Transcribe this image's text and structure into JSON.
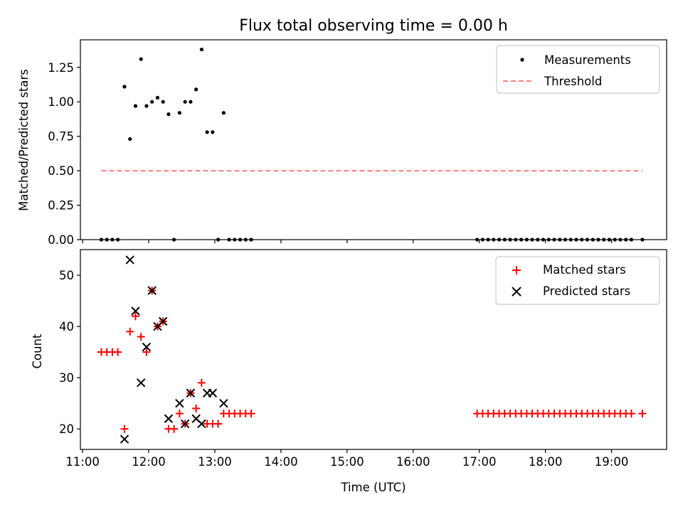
{
  "chart_data": [
    {
      "type": "scatter",
      "title": "Flux total observing time = 0.00 h",
      "xlabel": "",
      "ylabel": "Matched/Predicted stars",
      "ylim": [
        0,
        1.45
      ],
      "yticks": [
        "0.00",
        "0.25",
        "0.50",
        "0.75",
        "1.00",
        "1.25"
      ],
      "legend": {
        "placement": "top-right",
        "entries": [
          "Measurements",
          "Threshold"
        ]
      },
      "series": [
        {
          "name": "Measurements",
          "marker": "dot",
          "color": "#000000",
          "points": [
            [
              "11:17",
              0.0
            ],
            [
              "11:22",
              0.0
            ],
            [
              "11:27",
              0.0
            ],
            [
              "11:32",
              0.0
            ],
            [
              "11:38",
              1.11
            ],
            [
              "11:43",
              0.73
            ],
            [
              "11:48",
              0.97
            ],
            [
              "11:53",
              1.31
            ],
            [
              "11:58",
              0.97
            ],
            [
              "12:03",
              1.0
            ],
            [
              "12:08",
              1.03
            ],
            [
              "12:13",
              1.0
            ],
            [
              "12:18",
              0.91
            ],
            [
              "12:23",
              0.0
            ],
            [
              "12:28",
              0.92
            ],
            [
              "12:33",
              1.0
            ],
            [
              "12:38",
              1.0
            ],
            [
              "12:43",
              1.09
            ],
            [
              "12:48",
              1.38
            ],
            [
              "12:53",
              0.78
            ],
            [
              "12:58",
              0.78
            ],
            [
              "13:03",
              0.0
            ],
            [
              "13:08",
              0.92
            ],
            [
              "13:13",
              0.0
            ],
            [
              "13:18",
              0.0
            ],
            [
              "13:23",
              0.0
            ],
            [
              "13:28",
              0.0
            ],
            [
              "13:33",
              0.0
            ],
            [
              "16:58",
              0.0
            ],
            [
              "17:03",
              0.0
            ],
            [
              "17:08",
              0.0
            ],
            [
              "17:13",
              0.0
            ],
            [
              "17:18",
              0.0
            ],
            [
              "17:23",
              0.0
            ],
            [
              "17:28",
              0.0
            ],
            [
              "17:33",
              0.0
            ],
            [
              "17:38",
              0.0
            ],
            [
              "17:43",
              0.0
            ],
            [
              "17:48",
              0.0
            ],
            [
              "17:53",
              0.0
            ],
            [
              "17:58",
              0.0
            ],
            [
              "18:03",
              0.0
            ],
            [
              "18:08",
              0.0
            ],
            [
              "18:13",
              0.0
            ],
            [
              "18:18",
              0.0
            ],
            [
              "18:23",
              0.0
            ],
            [
              "18:28",
              0.0
            ],
            [
              "18:33",
              0.0
            ],
            [
              "18:38",
              0.0
            ],
            [
              "18:43",
              0.0
            ],
            [
              "18:48",
              0.0
            ],
            [
              "18:53",
              0.0
            ],
            [
              "18:58",
              0.0
            ],
            [
              "19:03",
              0.0
            ],
            [
              "19:08",
              0.0
            ],
            [
              "19:13",
              0.0
            ],
            [
              "19:18",
              0.0
            ],
            [
              "19:28",
              0.0
            ]
          ]
        },
        {
          "name": "Threshold",
          "style": "dashed",
          "color": "#ff7f7f",
          "points": [
            [
              "11:17",
              0.5
            ],
            [
              "19:28",
              0.5
            ]
          ]
        }
      ]
    },
    {
      "type": "scatter",
      "title": "",
      "xlabel": "Time (UTC)",
      "ylabel": "Count",
      "ylim": [
        16,
        55
      ],
      "yticks": [
        "20",
        "30",
        "40",
        "50"
      ],
      "xlim": [
        "10:58",
        "19:50"
      ],
      "xticks": [
        "11:00",
        "12:00",
        "13:00",
        "14:00",
        "15:00",
        "16:00",
        "17:00",
        "18:00",
        "19:00"
      ],
      "legend": {
        "placement": "top-right",
        "entries": [
          "Matched stars",
          "Predicted stars"
        ]
      },
      "series": [
        {
          "name": "Matched stars",
          "marker": "plus",
          "color": "#ff0000",
          "points": [
            [
              "11:17",
              35
            ],
            [
              "11:22",
              35
            ],
            [
              "11:27",
              35
            ],
            [
              "11:32",
              35
            ],
            [
              "11:38",
              20
            ],
            [
              "11:43",
              39
            ],
            [
              "11:48",
              42
            ],
            [
              "11:53",
              38
            ],
            [
              "11:58",
              35
            ],
            [
              "12:03",
              47
            ],
            [
              "12:08",
              40
            ],
            [
              "12:13",
              41
            ],
            [
              "12:18",
              20
            ],
            [
              "12:23",
              20
            ],
            [
              "12:28",
              23
            ],
            [
              "12:33",
              21
            ],
            [
              "12:38",
              27
            ],
            [
              "12:43",
              24
            ],
            [
              "12:48",
              29
            ],
            [
              "12:53",
              21
            ],
            [
              "12:58",
              21
            ],
            [
              "13:03",
              21
            ],
            [
              "13:08",
              23
            ],
            [
              "13:13",
              23
            ],
            [
              "13:18",
              23
            ],
            [
              "13:23",
              23
            ],
            [
              "13:28",
              23
            ],
            [
              "13:33",
              23
            ],
            [
              "16:58",
              23
            ],
            [
              "17:03",
              23
            ],
            [
              "17:08",
              23
            ],
            [
              "17:13",
              23
            ],
            [
              "17:18",
              23
            ],
            [
              "17:23",
              23
            ],
            [
              "17:28",
              23
            ],
            [
              "17:33",
              23
            ],
            [
              "17:38",
              23
            ],
            [
              "17:43",
              23
            ],
            [
              "17:48",
              23
            ],
            [
              "17:53",
              23
            ],
            [
              "17:58",
              23
            ],
            [
              "18:03",
              23
            ],
            [
              "18:08",
              23
            ],
            [
              "18:13",
              23
            ],
            [
              "18:18",
              23
            ],
            [
              "18:23",
              23
            ],
            [
              "18:28",
              23
            ],
            [
              "18:33",
              23
            ],
            [
              "18:38",
              23
            ],
            [
              "18:43",
              23
            ],
            [
              "18:48",
              23
            ],
            [
              "18:53",
              23
            ],
            [
              "18:58",
              23
            ],
            [
              "19:03",
              23
            ],
            [
              "19:08",
              23
            ],
            [
              "19:13",
              23
            ],
            [
              "19:18",
              23
            ],
            [
              "19:28",
              23
            ]
          ]
        },
        {
          "name": "Predicted stars",
          "marker": "x",
          "color": "#000000",
          "points": [
            [
              "11:38",
              18
            ],
            [
              "11:43",
              53
            ],
            [
              "11:48",
              43
            ],
            [
              "11:53",
              29
            ],
            [
              "11:58",
              36
            ],
            [
              "12:03",
              47
            ],
            [
              "12:08",
              40
            ],
            [
              "12:13",
              41
            ],
            [
              "12:18",
              22
            ],
            [
              "12:28",
              25
            ],
            [
              "12:33",
              21
            ],
            [
              "12:38",
              27
            ],
            [
              "12:43",
              22
            ],
            [
              "12:48",
              21
            ],
            [
              "12:53",
              27
            ],
            [
              "12:58",
              27
            ],
            [
              "13:08",
              25
            ]
          ]
        }
      ]
    }
  ]
}
